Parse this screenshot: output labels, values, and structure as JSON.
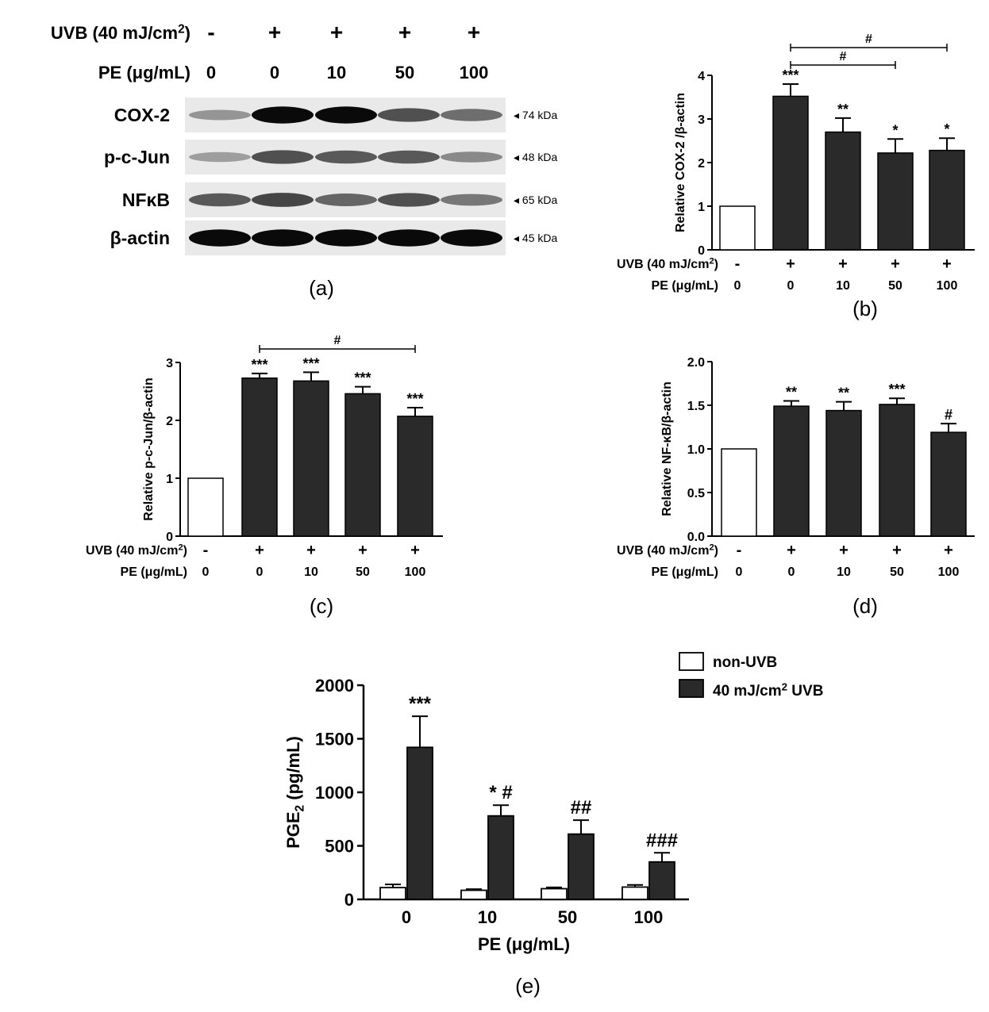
{
  "colors": {
    "bar_treated": "#2a2a2a",
    "bar_control": "#ffffff",
    "stroke": "#000000",
    "blot_band": "#000000"
  },
  "panels": {
    "a": {
      "label": "(a)",
      "uvb_row_label": "UVB (40 mJ/cm",
      "uvb_row_sup": "2",
      "uvb_row_close": ")",
      "pe_row_label": "PE (μg/mL)",
      "uvb_signs": [
        "-",
        "+",
        "+",
        "+",
        "+"
      ],
      "pe_doses": [
        "0",
        "0",
        "10",
        "50",
        "100"
      ],
      "blots": [
        {
          "protein": "COX-2",
          "mw": "◂ 74 kDa",
          "intensity": [
            0.25,
            0.95,
            0.95,
            0.6,
            0.45
          ]
        },
        {
          "protein": "p-c-Jun",
          "mw": "◂ 48 kDa",
          "intensity": [
            0.2,
            0.6,
            0.55,
            0.55,
            0.3
          ]
        },
        {
          "protein": "NFκB",
          "mw": "◂ 65 kDa",
          "intensity": [
            0.55,
            0.65,
            0.5,
            0.6,
            0.4
          ]
        },
        {
          "protein": "β-actin",
          "mw": "◂ 45 kDa",
          "intensity": [
            0.95,
            0.95,
            0.95,
            0.95,
            0.95
          ]
        }
      ]
    },
    "b": {
      "label": "(b)"
    },
    "c": {
      "label": "(c)"
    },
    "d": {
      "label": "(d)"
    },
    "e": {
      "label": "(e)"
    }
  },
  "chart_data": [
    {
      "id": "b",
      "type": "bar",
      "ylabel": "Relative COX-2 /β-actin",
      "ylim": [
        0,
        4
      ],
      "yticks": [
        "0",
        "1",
        "2",
        "3",
        "4"
      ],
      "uvb_row": {
        "label": "UVB (40 mJ/cm",
        "sup": "2",
        "close": ")",
        "values": [
          "-",
          "+",
          "+",
          "+",
          "+"
        ]
      },
      "pe_row": {
        "label": "PE (μg/mL)",
        "values": [
          "0",
          "0",
          "10",
          "50",
          "100"
        ]
      },
      "values": [
        1.0,
        3.52,
        2.7,
        2.22,
        2.28
      ],
      "errors": [
        0,
        0.28,
        0.32,
        0.32,
        0.28
      ],
      "annotations": [
        "",
        "***",
        "**",
        "*",
        "*"
      ],
      "brackets": [
        {
          "from": 1,
          "to": 4,
          "text": "#"
        },
        {
          "from": 1,
          "to": 3,
          "text": "#"
        }
      ]
    },
    {
      "id": "c",
      "type": "bar",
      "ylabel": "Relative p-c-Jun/β-actin",
      "ylim": [
        0,
        3
      ],
      "yticks": [
        "0",
        "1",
        "2",
        "3"
      ],
      "uvb_row": {
        "label": "UVB (40 mJ/cm",
        "sup": "2",
        "close": ")",
        "values": [
          "-",
          "+",
          "+",
          "+",
          "+"
        ]
      },
      "pe_row": {
        "label": "PE (μg/mL)",
        "values": [
          "0",
          "0",
          "10",
          "50",
          "100"
        ]
      },
      "values": [
        1.0,
        2.73,
        2.68,
        2.46,
        2.07
      ],
      "errors": [
        0,
        0.08,
        0.15,
        0.12,
        0.15
      ],
      "annotations": [
        "",
        "***",
        "***",
        "***",
        "***"
      ],
      "brackets": [
        {
          "from": 1,
          "to": 4,
          "text": "#"
        }
      ]
    },
    {
      "id": "d",
      "type": "bar",
      "ylabel": "Relative NF-κB/β-actin",
      "ylim": [
        0,
        2.0
      ],
      "yticks": [
        "0.0",
        "0.5",
        "1.0",
        "1.5",
        "2.0"
      ],
      "uvb_row": {
        "label": "UVB (40 mJ/cm",
        "sup": "2",
        "close": ")",
        "values": [
          "-",
          "+",
          "+",
          "+",
          "+"
        ]
      },
      "pe_row": {
        "label": "PE (μg/mL)",
        "values": [
          "0",
          "0",
          "10",
          "50",
          "100"
        ]
      },
      "values": [
        1.0,
        1.49,
        1.44,
        1.51,
        1.19
      ],
      "errors": [
        0,
        0.06,
        0.1,
        0.07,
        0.1
      ],
      "annotations": [
        "",
        "**",
        "**",
        "***",
        "#"
      ],
      "brackets": []
    },
    {
      "id": "e",
      "type": "bar",
      "xlabel": "PE (μg/mL)",
      "ylabel": "PGE",
      "ylabel_sub": "2",
      "ylabel_unit": " (pg/mL)",
      "ylim": [
        0,
        2000
      ],
      "yticks": [
        "0",
        "500",
        "1000",
        "1500",
        "2000"
      ],
      "categories": [
        "0",
        "10",
        "50",
        "100"
      ],
      "series": [
        {
          "name": "non-UVB",
          "values": [
            110,
            85,
            100,
            115
          ],
          "errors": [
            30,
            10,
            12,
            20
          ]
        },
        {
          "name": "40 mJ/cm",
          "name_sup": "2",
          "name_tail": " UVB",
          "values": [
            1420,
            780,
            610,
            350
          ],
          "errors": [
            290,
            100,
            130,
            85
          ]
        }
      ],
      "annotations": [
        "***",
        "* #",
        "##",
        "###"
      ]
    }
  ]
}
